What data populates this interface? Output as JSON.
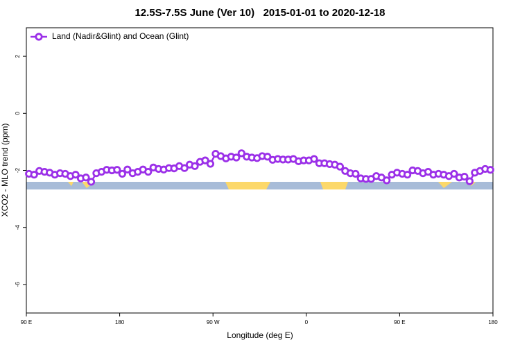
{
  "chart_data": {
    "type": "line",
    "title": "12.5S-7.5S June (Ver 10)   2015-01-01 to 2020-12-18",
    "xlabel": "Longitude (deg E)",
    "ylabel": "XCO2 - MLO trend (ppm)",
    "xlim": [
      90,
      540
    ],
    "xticks": [
      {
        "value": 90,
        "label": "90 E"
      },
      180,
      {
        "value": 270,
        "label": "90 W"
      },
      {
        "value": 360,
        "label": "0"
      },
      {
        "value": 450,
        "label": "90 E"
      },
      {
        "value": 540,
        "label": "180"
      }
    ],
    "ylim": [
      -7,
      3
    ],
    "yticks": [
      2,
      0,
      -2,
      -4,
      -6
    ],
    "legend": "top-left",
    "x": [
      92.5,
      97.5,
      102.5,
      107.5,
      112.5,
      117.5,
      122.5,
      127.5,
      132.5,
      137.5,
      142.5,
      147.5,
      152.5,
      157.5,
      162.5,
      167.5,
      172.5,
      177.5,
      182.5,
      187.5,
      192.5,
      197.5,
      202.5,
      207.5,
      212.5,
      217.5,
      222.5,
      227.5,
      232.5,
      237.5,
      242.5,
      247.5,
      252.5,
      257.5,
      262.5,
      267.5,
      272.5,
      277.5,
      282.5,
      287.5,
      292.5,
      297.5,
      302.5,
      307.5,
      312.5,
      317.5,
      322.5,
      327.5,
      332.5,
      337.5,
      342.5,
      347.5,
      352.5,
      357.5,
      362.5,
      367.5,
      372.5,
      377.5,
      382.5,
      387.5,
      392.5,
      397.5,
      402.5,
      407.5,
      412.5,
      417.5,
      422.5,
      427.5,
      432.5,
      437.5,
      442.5,
      447.5,
      452.5,
      457.5,
      462.5,
      467.5,
      472.5,
      477.5,
      482.5,
      487.5,
      492.5,
      497.5,
      502.5,
      507.5,
      512.5,
      517.5,
      522.5,
      527.5,
      532.5,
      537.5
    ],
    "series": [
      {
        "name": "Land (Nadir&Glint) and Ocean (Glint)",
        "color": "#9b30e8",
        "values": [
          -2.12,
          -2.15,
          -2.02,
          -2.05,
          -2.08,
          -2.15,
          -2.1,
          -2.12,
          -2.2,
          -2.15,
          -2.28,
          -2.25,
          -2.4,
          -2.1,
          -2.05,
          -1.98,
          -2.0,
          -1.98,
          -2.12,
          -1.97,
          -2.1,
          -2.05,
          -1.97,
          -2.05,
          -1.9,
          -1.95,
          -1.97,
          -1.92,
          -1.93,
          -1.85,
          -1.92,
          -1.8,
          -1.85,
          -1.7,
          -1.65,
          -1.77,
          -1.42,
          -1.5,
          -1.58,
          -1.52,
          -1.55,
          -1.4,
          -1.52,
          -1.55,
          -1.57,
          -1.5,
          -1.52,
          -1.63,
          -1.6,
          -1.62,
          -1.62,
          -1.6,
          -1.68,
          -1.65,
          -1.65,
          -1.6,
          -1.75,
          -1.75,
          -1.78,
          -1.8,
          -1.87,
          -2.02,
          -2.1,
          -2.12,
          -2.28,
          -2.3,
          -2.3,
          -2.2,
          -2.25,
          -2.35,
          -2.15,
          -2.08,
          -2.12,
          -2.15,
          -2.0,
          -2.02,
          -2.1,
          -2.05,
          -2.15,
          -2.12,
          -2.15,
          -2.2,
          -2.12,
          -2.25,
          -2.22,
          -2.38,
          -2.08,
          -2.02,
          -1.95,
          -1.98
        ]
      }
    ]
  }
}
